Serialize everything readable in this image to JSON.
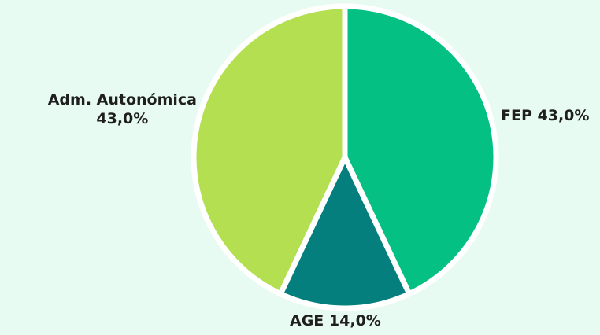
{
  "chart_data": {
    "type": "pie",
    "slices": [
      {
        "label": "FEP",
        "value": 43.0,
        "display": "43,0%",
        "color": "#05c083"
      },
      {
        "label": "AGE",
        "value": 14.0,
        "display": "14,0%",
        "color": "#047f7d"
      },
      {
        "label": "Adm. Autonómica",
        "value": 43.0,
        "display": "43,0%",
        "color": "#b3df51"
      }
    ],
    "start_angle_deg": 0,
    "direction": "clockwise",
    "slice_separator_color": "#ffffff",
    "background_color": "#e8fbf3",
    "legend": "none"
  }
}
